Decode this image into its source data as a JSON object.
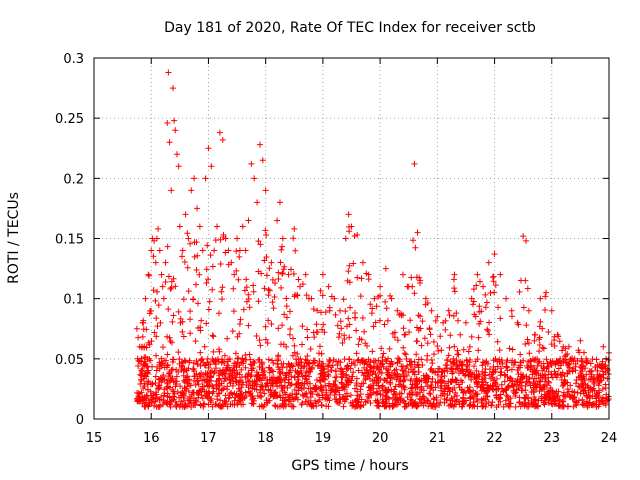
{
  "chart_data": {
    "type": "scatter",
    "title": "Day 181 of 2020, Rate Of TEC Index for receiver sctb",
    "xlabel": "GPS time / hours",
    "ylabel": "ROTI / TECUs",
    "xlim": [
      15,
      24
    ],
    "ylim": [
      0,
      0.3
    ],
    "xticks": [
      15,
      16,
      17,
      18,
      19,
      20,
      21,
      22,
      23,
      24
    ],
    "xtick_labels": [
      "15",
      "16",
      "17",
      "18",
      "19",
      "20",
      "21",
      "22",
      "23",
      "24"
    ],
    "yticks": [
      0,
      0.05,
      0.1,
      0.15,
      0.2,
      0.25,
      0.3
    ],
    "ytick_labels": [
      "0",
      "0.05",
      "0.1",
      "0.15",
      "0.2",
      "0.25",
      "0.3"
    ],
    "grid": true,
    "marker": "+",
    "color": "#ff0000",
    "series": [
      {
        "name": "ROTI",
        "x": [
          15.75,
          15.8,
          15.85,
          15.9,
          15.95,
          16.0,
          16.02,
          16.05,
          16.08,
          16.1,
          16.12,
          16.15,
          16.18,
          16.2,
          16.22,
          16.25,
          16.28,
          16.3,
          16.32,
          16.35,
          16.38,
          16.4,
          16.42,
          16.45,
          16.48,
          16.5,
          16.55,
          16.6,
          16.65,
          16.7,
          16.75,
          16.8,
          16.85,
          16.9,
          16.95,
          17.0,
          17.05,
          17.1,
          17.15,
          17.2,
          17.25,
          17.3,
          17.35,
          17.4,
          17.45,
          17.5,
          17.55,
          17.6,
          17.65,
          17.7,
          17.75,
          17.8,
          17.85,
          17.9,
          17.95,
          18.0,
          18.1,
          18.2,
          18.25,
          18.3,
          18.4,
          18.5,
          18.6,
          18.7,
          18.8,
          18.9,
          19.0,
          19.1,
          19.2,
          19.3,
          19.4,
          19.45,
          19.5,
          19.6,
          19.7,
          19.8,
          19.9,
          20.0,
          20.1,
          20.2,
          20.3,
          20.4,
          20.5,
          20.6,
          20.7,
          20.8,
          20.9,
          21.0,
          21.1,
          21.2,
          21.3,
          21.4,
          21.5,
          21.6,
          21.7,
          21.8,
          21.9,
          22.0,
          22.1,
          22.2,
          22.3,
          22.4,
          22.5,
          22.55,
          22.6,
          22.7,
          22.8,
          22.9,
          23.0,
          23.1,
          23.2,
          23.3,
          23.4,
          23.5,
          23.6,
          23.7,
          23.8,
          23.9,
          23.95,
          24.0
        ],
        "y": [
          0.075,
          0.06,
          0.08,
          0.1,
          0.12,
          0.14,
          0.15,
          0.148,
          0.13,
          0.15,
          0.158,
          0.14,
          0.12,
          0.11,
          0.1,
          0.13,
          0.246,
          0.288,
          0.23,
          0.19,
          0.275,
          0.248,
          0.24,
          0.22,
          0.21,
          0.16,
          0.14,
          0.17,
          0.15,
          0.19,
          0.2,
          0.175,
          0.16,
          0.14,
          0.2,
          0.225,
          0.21,
          0.14,
          0.16,
          0.238,
          0.232,
          0.15,
          0.14,
          0.13,
          0.12,
          0.15,
          0.14,
          0.16,
          0.14,
          0.165,
          0.212,
          0.2,
          0.18,
          0.228,
          0.215,
          0.19,
          0.13,
          0.165,
          0.18,
          0.15,
          0.12,
          0.158,
          0.11,
          0.12,
          0.1,
          0.09,
          0.12,
          0.11,
          0.1,
          0.09,
          0.15,
          0.17,
          0.16,
          0.153,
          0.13,
          0.12,
          0.1,
          0.11,
          0.125,
          0.1,
          0.09,
          0.12,
          0.11,
          0.212,
          0.115,
          0.1,
          0.09,
          0.085,
          0.08,
          0.09,
          0.12,
          0.07,
          0.08,
          0.1,
          0.12,
          0.11,
          0.13,
          0.137,
          0.12,
          0.1,
          0.09,
          0.08,
          0.152,
          0.148,
          0.09,
          0.07,
          0.1,
          0.105,
          0.09,
          0.07,
          0.06,
          0.06,
          0.05,
          0.065,
          0.05,
          0.04,
          0.04,
          0.06,
          0.05,
          0.055
        ],
        "floor_y": 0.01,
        "baseline_band": [
          0.01,
          0.05
        ]
      }
    ]
  }
}
